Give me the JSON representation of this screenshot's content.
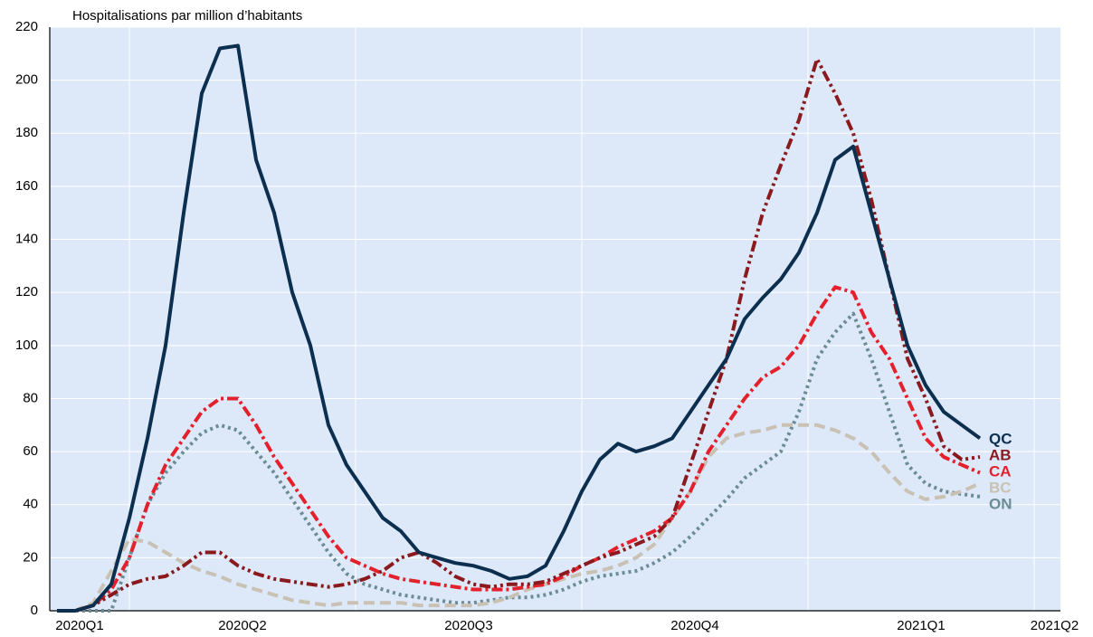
{
  "chart_data": {
    "type": "line",
    "ylabel": "Hospitalisations par million d’habitants",
    "x": [
      0.68,
      0.76,
      0.84,
      0.92,
      1.0,
      1.08,
      1.16,
      1.24,
      1.32,
      1.4,
      1.48,
      1.56,
      1.64,
      1.72,
      1.8,
      1.88,
      1.96,
      2.04,
      2.12,
      2.2,
      2.28,
      2.36,
      2.44,
      2.52,
      2.6,
      2.68,
      2.76,
      2.84,
      2.92,
      3.0,
      3.08,
      3.16,
      3.24,
      3.32,
      3.4,
      3.48,
      3.56,
      3.64,
      3.72,
      3.8,
      3.88,
      3.96,
      4.04,
      4.12,
      4.2,
      4.28,
      4.36,
      4.44,
      4.52,
      4.6,
      4.68,
      4.76
    ],
    "series": [
      {
        "name": "QC",
        "color": "#0d2f4f",
        "style": "solid",
        "values": [
          0,
          0,
          2,
          10,
          35,
          65,
          100,
          150,
          195,
          212,
          213,
          170,
          150,
          120,
          100,
          70,
          55,
          45,
          35,
          30,
          22,
          20,
          18,
          17,
          15,
          12,
          13,
          17,
          30,
          45,
          57,
          63,
          60,
          62,
          65,
          75,
          85,
          95,
          110,
          118,
          125,
          135,
          150,
          170,
          175,
          150,
          125,
          100,
          85,
          75,
          70,
          65
        ]
      },
      {
        "name": "AB",
        "color": "#8b1a1f",
        "style": "dashdotdot",
        "values": [
          0,
          0,
          2,
          6,
          10,
          12,
          13,
          17,
          22,
          22,
          17,
          14,
          12,
          11,
          10,
          9,
          10,
          12,
          15,
          20,
          22,
          18,
          13,
          10,
          9,
          10,
          10,
          11,
          14,
          17,
          20,
          22,
          25,
          28,
          35,
          55,
          75,
          95,
          125,
          150,
          168,
          185,
          208,
          195,
          180,
          155,
          125,
          95,
          80,
          62,
          57,
          58
        ]
      },
      {
        "name": "CA",
        "color": "#e3202c",
        "style": "dashdot",
        "values": [
          0,
          0,
          2,
          8,
          20,
          40,
          55,
          65,
          75,
          80,
          80,
          70,
          58,
          48,
          38,
          28,
          20,
          17,
          14,
          12,
          11,
          10,
          9,
          8,
          8,
          8,
          9,
          10,
          13,
          17,
          20,
          24,
          27,
          30,
          35,
          45,
          60,
          70,
          80,
          88,
          92,
          100,
          112,
          122,
          120,
          105,
          95,
          80,
          65,
          58,
          55,
          52
        ]
      },
      {
        "name": "BC",
        "color": "#c9c1b3",
        "style": "dashed",
        "values": [
          0,
          0,
          3,
          15,
          27,
          26,
          22,
          18,
          15,
          13,
          10,
          8,
          6,
          4,
          3,
          2,
          3,
          3,
          3,
          3,
          2,
          2,
          2,
          2,
          3,
          5,
          8,
          10,
          12,
          14,
          15,
          17,
          20,
          25,
          35,
          45,
          58,
          65,
          67,
          68,
          70,
          70,
          70,
          68,
          65,
          60,
          52,
          45,
          42,
          43,
          45,
          48
        ]
      },
      {
        "name": "ON",
        "color": "#6b8c94",
        "style": "dotted",
        "values": [
          0,
          0,
          0,
          0,
          20,
          40,
          52,
          60,
          67,
          70,
          68,
          60,
          52,
          42,
          32,
          22,
          14,
          10,
          8,
          6,
          5,
          4,
          3,
          3,
          4,
          5,
          5,
          6,
          8,
          11,
          13,
          14,
          15,
          18,
          22,
          28,
          35,
          42,
          50,
          55,
          60,
          75,
          95,
          105,
          112,
          95,
          75,
          55,
          48,
          45,
          44,
          43
        ]
      }
    ],
    "xlim": [
      0.648,
      5.116
    ],
    "xticks": [
      {
        "value": 0.78,
        "label": "2020Q1"
      },
      {
        "value": 1.5,
        "label": "2020Q2"
      },
      {
        "value": 2.5,
        "label": "2020Q3"
      },
      {
        "value": 3.5,
        "label": "2020Q4"
      },
      {
        "value": 4.5,
        "label": "2021Q1"
      },
      {
        "value": 5.09,
        "label": "2021Q2"
      }
    ],
    "xgrid": [
      1,
      2,
      3,
      4,
      5
    ],
    "ylim": [
      0,
      220
    ],
    "yticks": [
      0,
      20,
      40,
      60,
      80,
      100,
      120,
      140,
      160,
      180,
      200,
      220
    ],
    "grid": true,
    "background": "#dde9f9"
  }
}
